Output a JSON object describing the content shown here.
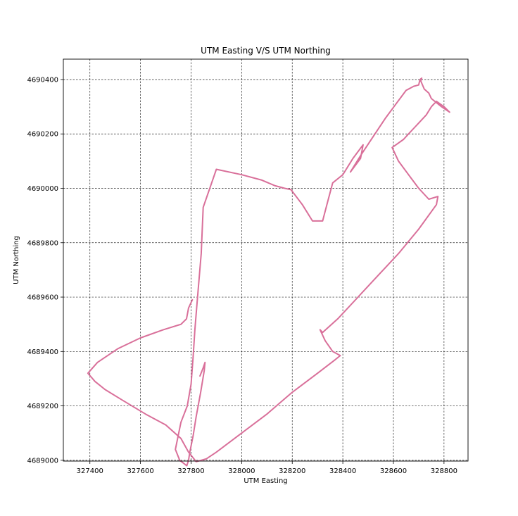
{
  "chart_data": {
    "type": "line",
    "title": "UTM Easting V/S UTM Northing",
    "xlabel": "UTM Easting",
    "ylabel": "UTM Northing",
    "xlim": [
      327295,
      328895
    ],
    "ylim": [
      4688997,
      4690475
    ],
    "x_ticks": [
      327400,
      327600,
      327800,
      328000,
      328200,
      328400,
      328600,
      328800
    ],
    "y_ticks": [
      4689000,
      4689200,
      4689400,
      4689600,
      4689800,
      4690000,
      4690200,
      4690400
    ],
    "x_tick_labels": [
      "327400",
      "327600",
      "327800",
      "328000",
      "328200",
      "328400",
      "328600",
      "328800"
    ],
    "y_tick_labels": [
      "4689000",
      "4689200",
      "4689400",
      "4689600",
      "4689800",
      "4690000",
      "4690200",
      "4690400"
    ],
    "grid": true,
    "line_color": "#d9709a",
    "series": [
      {
        "x": [
          327835,
          327848,
          327855,
          327852,
          327838,
          327820,
          327808,
          327795,
          327790,
          327783,
          327755,
          327738,
          327760,
          327785,
          327800,
          327808,
          327815,
          327822,
          327840,
          327848,
          327900,
          328000,
          328080,
          328130,
          328170,
          328195,
          328240,
          328280,
          328320,
          328340,
          328360,
          328400,
          328440,
          328480,
          328470,
          328430,
          328470,
          328520,
          328570,
          328610,
          328650,
          328680,
          328700,
          328705,
          328712,
          328708,
          328722,
          328740,
          328750,
          328790,
          328822,
          328800,
          328770,
          328750,
          328730,
          328700,
          328680,
          328660,
          328640,
          328610,
          328595,
          328620,
          328660,
          328700,
          328740,
          328776,
          328770,
          328700,
          328620,
          328540,
          328460,
          328380,
          328320,
          328310,
          328330,
          328360,
          328390,
          328370,
          328300,
          328200,
          328100,
          328000,
          327900,
          327860,
          327840,
          327820,
          327790,
          327760,
          327700,
          327620,
          327530,
          327460,
          327420,
          327392,
          327430,
          327510,
          327600,
          327690,
          327760,
          327782,
          327790,
          327805
        ],
        "y": [
          4689310,
          4689340,
          4689360,
          4689330,
          4689250,
          4689160,
          4689090,
          4689030,
          4689000,
          4688980,
          4689000,
          4689040,
          4689140,
          4689200,
          4689280,
          4689380,
          4689480,
          4689560,
          4689760,
          4689930,
          4690070,
          4690050,
          4690030,
          4690010,
          4690000,
          4689995,
          4689940,
          4689880,
          4689880,
          4689950,
          4690020,
          4690050,
          4690110,
          4690160,
          4690110,
          4690060,
          4690120,
          4690190,
          4690260,
          4690310,
          4690360,
          4690375,
          4690380,
          4690400,
          4690405,
          4690395,
          4690365,
          4690350,
          4690330,
          4690300,
          4690280,
          4690300,
          4690320,
          4690300,
          4690270,
          4690240,
          4690220,
          4690200,
          4690180,
          4690160,
          4690150,
          4690100,
          4690050,
          4690000,
          4689960,
          4689970,
          4689940,
          4689850,
          4689760,
          4689680,
          4689600,
          4689520,
          4689470,
          4689480,
          4689440,
          4689400,
          4689385,
          4689370,
          4689320,
          4689250,
          4689170,
          4689100,
          4689030,
          4689005,
          4689000,
          4688995,
          4689030,
          4689080,
          4689130,
          4689170,
          4689220,
          4689260,
          4689290,
          4689320,
          4689360,
          4689410,
          4689450,
          4689480,
          4689500,
          4689520,
          4689560,
          4689590
        ]
      }
    ]
  }
}
